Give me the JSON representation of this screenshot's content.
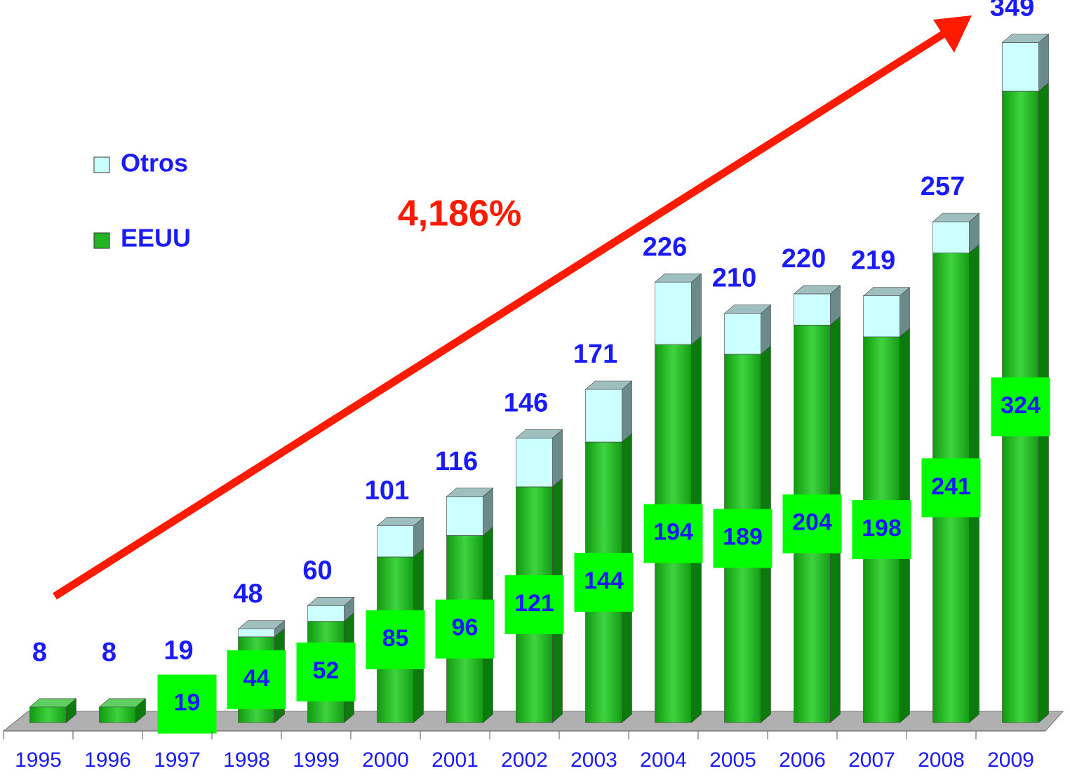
{
  "chart_data": {
    "type": "stacked-bar-3d",
    "annotation": "4,186%",
    "categories": [
      "1995",
      "1996",
      "1997",
      "1998",
      "1999",
      "2000",
      "2001",
      "2002",
      "2003",
      "2004",
      "2005",
      "2006",
      "2007",
      "2008",
      "2009"
    ],
    "series": [
      {
        "name": "EEUU",
        "color": "#22b422",
        "values": [
          8,
          8,
          19,
          44,
          52,
          85,
          96,
          121,
          144,
          194,
          189,
          204,
          198,
          241,
          324
        ],
        "value_labels": [
          null,
          null,
          "19",
          "44",
          "52",
          "85",
          "96",
          "121",
          "144",
          "194",
          "189",
          "204",
          "198",
          "241",
          "324"
        ]
      },
      {
        "name": "Otros",
        "color": "#ccffff",
        "values": [
          0,
          0,
          0,
          4,
          8,
          16,
          20,
          25,
          27,
          32,
          21,
          16,
          21,
          16,
          25
        ]
      }
    ],
    "totals": [
      8,
      8,
      19,
      48,
      60,
      101,
      116,
      146,
      171,
      226,
      210,
      220,
      219,
      257,
      349
    ],
    "ylim": [
      0,
      360
    ]
  }
}
